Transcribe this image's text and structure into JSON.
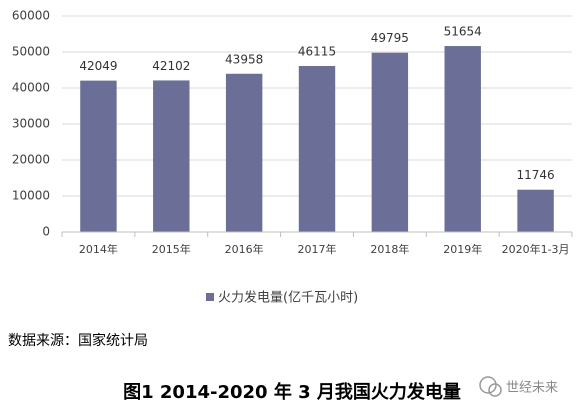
{
  "chart_data": {
    "type": "bar",
    "categories": [
      "2014年",
      "2015年",
      "2016年",
      "2017年",
      "2018年",
      "2019年",
      "2020年1-3月"
    ],
    "series": [
      {
        "name": "火力发电量(亿千瓦小时)",
        "color": "#6b6f97",
        "values": [
          42049,
          42102,
          43958,
          46115,
          49795,
          51654,
          11746
        ]
      }
    ],
    "ylim": [
      0,
      60000
    ],
    "yticks": [
      0,
      10000,
      20000,
      30000,
      40000,
      50000,
      60000
    ],
    "grid": true,
    "source": "数据来源：国家统计局",
    "caption": "图1 2014-2020 年 3 月我国火力发电量",
    "watermark": "世经未来"
  }
}
